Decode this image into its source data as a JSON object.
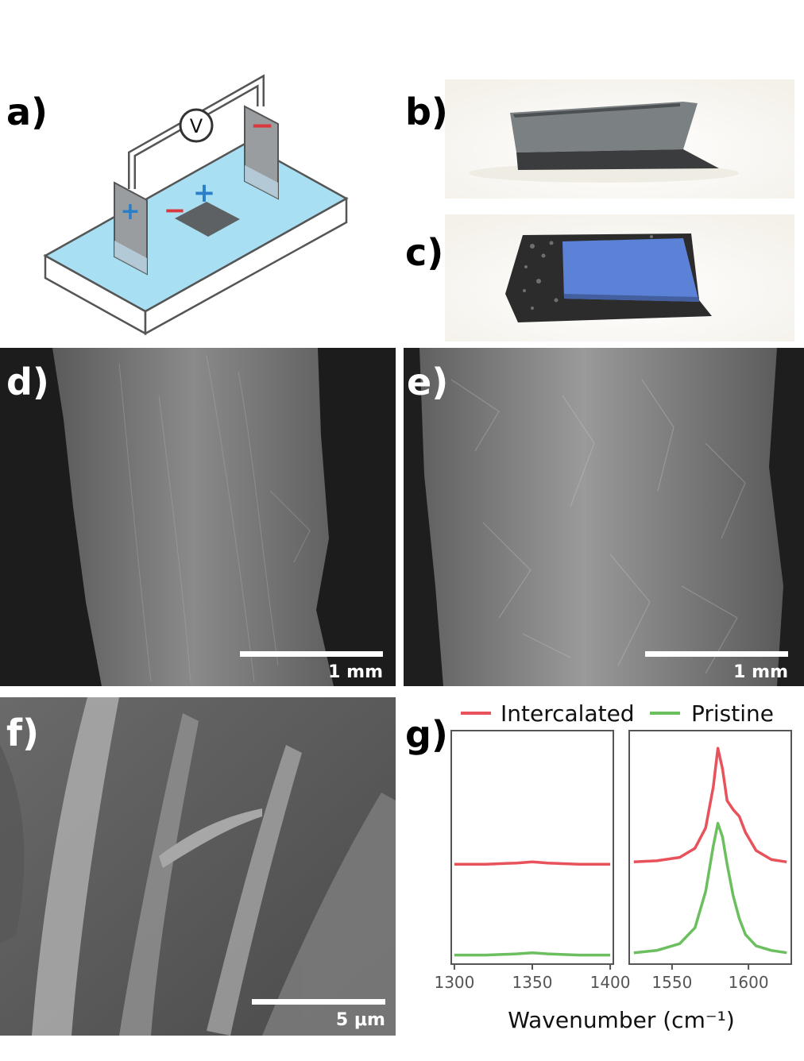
{
  "labels": {
    "a": "a)",
    "b": "b)",
    "c": "c)",
    "d": "d)",
    "e": "e)",
    "f": "f)",
    "g": "g)"
  },
  "schematic": {
    "voltmeter": "V",
    "plus_electrode_sign": "+",
    "minus_electrode_sign": "−",
    "ion_minus": "−",
    "ion_plus": "+",
    "colors": {
      "electrolyte": "#a9dff2",
      "plus": "#2a7fc8",
      "minus": "#d9393c",
      "sample": "#5d6164"
    }
  },
  "photos": {
    "b_colors": {
      "sample": "#6b7072",
      "edge": "#3a3c3e"
    },
    "c_colors": {
      "blue_face": "#5b82d6",
      "edge": "#2c2c2c"
    }
  },
  "scalebars": {
    "d": "1 mm",
    "e": "1 mm",
    "f": "5 μm"
  },
  "chart_data": {
    "type": "line",
    "legend": [
      "Intercalated",
      "Pristine"
    ],
    "legend_placement": "top",
    "xlabel": "Wavenumber (cm⁻¹)",
    "ylabel": "",
    "colors": {
      "Intercalated": "#e8525a",
      "Pristine": "#6cbf5f"
    },
    "panels": [
      {
        "xlim": [
          1298,
          1402
        ],
        "xticks": [
          "1300",
          "1350",
          "1400"
        ],
        "series": [
          {
            "name": "Intercalated",
            "x": [
              1300,
              1320,
              1340,
              1350,
              1360,
              1380,
              1400
            ],
            "y": [
              0.44,
              0.44,
              0.445,
              0.45,
              0.445,
              0.44,
              0.44
            ]
          },
          {
            "name": "Pristine",
            "x": [
              1300,
              1320,
              1340,
              1350,
              1360,
              1380,
              1400
            ],
            "y": [
              0.04,
              0.04,
              0.045,
              0.05,
              0.045,
              0.04,
              0.04
            ]
          }
        ]
      },
      {
        "xlim": [
          1522,
          1628
        ],
        "xticks": [
          "1550",
          "1600"
        ],
        "series": [
          {
            "name": "Intercalated",
            "x": [
              1525,
              1540,
              1555,
              1565,
              1572,
              1577,
              1580,
              1583,
              1586,
              1590,
              1594,
              1598,
              1605,
              1615,
              1625
            ],
            "y": [
              0.45,
              0.455,
              0.47,
              0.51,
              0.6,
              0.78,
              0.95,
              0.86,
              0.72,
              0.68,
              0.65,
              0.58,
              0.5,
              0.46,
              0.45
            ]
          },
          {
            "name": "Pristine",
            "x": [
              1525,
              1540,
              1555,
              1565,
              1572,
              1577,
              1580,
              1583,
              1586,
              1590,
              1594,
              1598,
              1605,
              1615,
              1625
            ],
            "y": [
              0.05,
              0.06,
              0.09,
              0.16,
              0.32,
              0.52,
              0.62,
              0.56,
              0.44,
              0.3,
              0.2,
              0.13,
              0.08,
              0.06,
              0.05
            ]
          }
        ]
      }
    ]
  }
}
